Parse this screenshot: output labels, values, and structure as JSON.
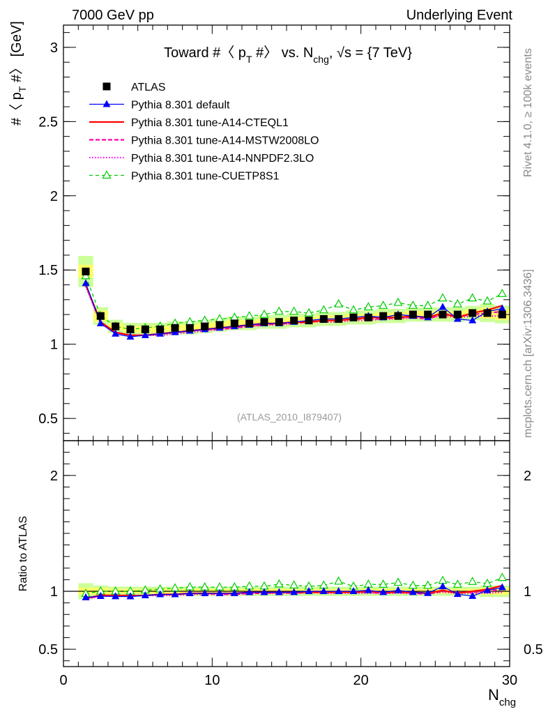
{
  "header": {
    "left": "7000 GeV pp",
    "right": "Underlying Event"
  },
  "side": {
    "rivet": "Rivet 4.1.0, ≥ 100k events",
    "mcplots": "mcplots.cern.ch [arXiv:1306.3436]"
  },
  "analysis_tag": "(ATLAS_2010_I879407)",
  "colors": {
    "atlas": "#000000",
    "default": "#0000ff",
    "cteql1": "#ff0000",
    "mstw": "#ff00aa",
    "nnpdf": "#ff00ff",
    "cuetp": "#00cc00",
    "band_inner": "#ffff66",
    "band_outer": "#ccff99"
  },
  "chart_data": [
    {
      "id": "main",
      "type": "line",
      "title": "Toward #〈 p_T #〉 vs. N_chg, √s = {7 TeV}",
      "title_parts": {
        "a": "Toward #〈 p",
        "a_sub": "T",
        "b": " #〉 vs. N",
        "b_sub": "chg",
        "c": ", √s = {7 TeV}"
      },
      "ylabel": "#〈 p_T #〉 [GeV]",
      "ylabel_parts": {
        "a": "#〈 p",
        "sub": "T",
        "b": " #〉 [GeV]"
      },
      "xlim": [
        0,
        30
      ],
      "ylim": [
        0.35,
        3.15
      ],
      "yticks": [
        0.5,
        1,
        1.5,
        2,
        2.5,
        3
      ],
      "ytick_labels": [
        "0.5",
        "1",
        "1.5",
        "2",
        "2.5",
        "3"
      ],
      "x": [
        1.5,
        2.5,
        3.5,
        4.5,
        5.5,
        6.5,
        7.5,
        8.5,
        9.5,
        10.5,
        11.5,
        12.5,
        13.5,
        14.5,
        15.5,
        16.5,
        17.5,
        18.5,
        19.5,
        20.5,
        21.5,
        22.5,
        23.5,
        24.5,
        25.5,
        26.5,
        27.5,
        28.5,
        29.5
      ],
      "series": [
        {
          "name": "ATLAS",
          "key": "atlas",
          "style": "square",
          "values": [
            1.49,
            1.19,
            1.12,
            1.1,
            1.1,
            1.1,
            1.11,
            1.11,
            1.12,
            1.13,
            1.14,
            1.14,
            1.15,
            1.15,
            1.16,
            1.16,
            1.17,
            1.17,
            1.18,
            1.18,
            1.19,
            1.19,
            1.2,
            1.2,
            1.2,
            1.2,
            1.21,
            1.21,
            1.2
          ]
        },
        {
          "name": "Pythia 8.301 default",
          "key": "default",
          "style": "tri-solid",
          "values": [
            1.41,
            1.14,
            1.07,
            1.05,
            1.06,
            1.07,
            1.08,
            1.09,
            1.1,
            1.11,
            1.12,
            1.13,
            1.14,
            1.14,
            1.15,
            1.16,
            1.17,
            1.17,
            1.18,
            1.19,
            1.18,
            1.2,
            1.19,
            1.18,
            1.25,
            1.17,
            1.16,
            1.22,
            1.24
          ]
        },
        {
          "name": "Pythia 8.301 tune-A14-CTEQL1",
          "key": "cteql1",
          "style": "solid",
          "values": [
            1.4,
            1.15,
            1.08,
            1.06,
            1.06,
            1.07,
            1.08,
            1.09,
            1.1,
            1.11,
            1.12,
            1.13,
            1.14,
            1.14,
            1.15,
            1.15,
            1.16,
            1.16,
            1.17,
            1.18,
            1.18,
            1.18,
            1.19,
            1.18,
            1.21,
            1.18,
            1.21,
            1.23,
            1.26
          ]
        },
        {
          "name": "Pythia 8.301 tune-A14-MSTW2008LO",
          "key": "mstw",
          "style": "dashed",
          "values": [
            1.4,
            1.14,
            1.08,
            1.06,
            1.06,
            1.07,
            1.08,
            1.09,
            1.1,
            1.1,
            1.11,
            1.12,
            1.13,
            1.14,
            1.14,
            1.15,
            1.16,
            1.16,
            1.17,
            1.17,
            1.17,
            1.18,
            1.18,
            1.17,
            1.2,
            1.19,
            1.2,
            1.21,
            1.22
          ]
        },
        {
          "name": "Pythia 8.301 tune-A14-NNPDF2.3LO",
          "key": "nnpdf",
          "style": "dotted",
          "values": [
            1.39,
            1.14,
            1.08,
            1.06,
            1.06,
            1.06,
            1.07,
            1.08,
            1.09,
            1.1,
            1.11,
            1.12,
            1.13,
            1.13,
            1.14,
            1.15,
            1.15,
            1.15,
            1.16,
            1.16,
            1.17,
            1.17,
            1.18,
            1.18,
            1.19,
            1.18,
            1.19,
            1.19,
            1.19
          ]
        },
        {
          "name": "Pythia 8.301 tune-CUETP8S1",
          "key": "cuetp",
          "style": "tri-open-dashed",
          "values": [
            1.46,
            1.19,
            1.12,
            1.1,
            1.11,
            1.12,
            1.14,
            1.15,
            1.16,
            1.17,
            1.18,
            1.19,
            1.2,
            1.22,
            1.22,
            1.21,
            1.23,
            1.27,
            1.23,
            1.25,
            1.26,
            1.28,
            1.26,
            1.26,
            1.31,
            1.27,
            1.31,
            1.29,
            1.34
          ]
        }
      ]
    },
    {
      "id": "ratio",
      "type": "line",
      "ylabel": "Ratio to ATLAS",
      "xlabel": "N_chg",
      "xlabel_parts": {
        "a": "N",
        "sub": "chg"
      },
      "xlim": [
        0,
        30
      ],
      "ylim": [
        0.35,
        2.3
      ],
      "xticks": [
        0,
        10,
        20,
        30
      ],
      "xtick_labels": [
        "0",
        "10",
        "20",
        "30"
      ],
      "yticks": [
        0.5,
        1,
        2
      ],
      "ytick_labels": [
        "0.5",
        "1",
        "2"
      ],
      "band_inner": [
        0.03,
        0.03,
        0.02,
        0.02,
        0.02,
        0.02,
        0.02,
        0.02,
        0.02,
        0.02,
        0.02,
        0.02,
        0.02,
        0.02,
        0.02,
        0.02,
        0.02,
        0.02,
        0.02,
        0.02,
        0.02,
        0.02,
        0.02,
        0.02,
        0.02,
        0.02,
        0.02,
        0.03,
        0.03
      ],
      "band_outer": [
        0.07,
        0.05,
        0.04,
        0.04,
        0.04,
        0.04,
        0.04,
        0.04,
        0.04,
        0.04,
        0.04,
        0.04,
        0.04,
        0.04,
        0.04,
        0.04,
        0.04,
        0.04,
        0.04,
        0.04,
        0.04,
        0.04,
        0.04,
        0.04,
        0.04,
        0.04,
        0.04,
        0.05,
        0.05
      ]
    }
  ]
}
